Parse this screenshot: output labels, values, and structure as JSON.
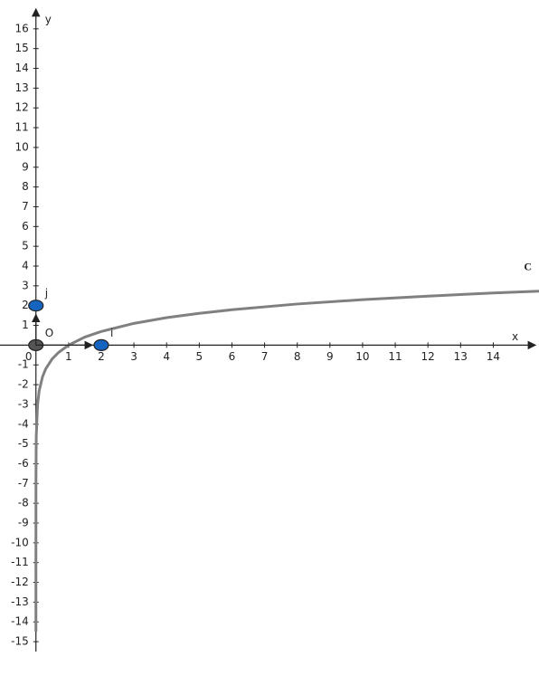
{
  "chart_data": {
    "type": "line",
    "x_label": "x",
    "y_label": "y",
    "xlim": [
      -1.1,
      15.4
    ],
    "ylim": [
      -15.5,
      17
    ],
    "xticks": [
      0,
      1,
      2,
      3,
      4,
      5,
      6,
      7,
      8,
      9,
      10,
      11,
      12,
      13,
      14
    ],
    "yticks": [
      -15,
      -14,
      -13,
      -12,
      -11,
      -10,
      -9,
      -8,
      -7,
      -6,
      -5,
      -4,
      -3,
      -2,
      -1,
      1,
      2,
      3,
      4,
      5,
      6,
      7,
      8,
      9,
      10,
      11,
      12,
      13,
      14,
      15,
      16
    ],
    "series": [
      {
        "name": "C",
        "color": "#808080",
        "x": [
          5e-07,
          1e-06,
          1e-05,
          0.0001,
          0.001,
          0.01,
          0.05,
          0.1,
          0.2,
          0.3,
          0.5,
          0.7,
          1,
          1.5,
          2,
          3,
          4,
          5,
          6,
          8,
          10,
          12,
          14,
          15.4
        ],
        "values": [
          -14.5,
          -13.82,
          -11.51,
          -9.21,
          -6.91,
          -4.61,
          -3.0,
          -2.3,
          -1.61,
          -1.2,
          -0.69,
          -0.36,
          0,
          0.41,
          0.69,
          1.1,
          1.39,
          1.61,
          1.79,
          2.08,
          2.3,
          2.48,
          2.64,
          2.73
        ]
      }
    ],
    "points": [
      {
        "label": "O",
        "x": 0,
        "y": 0,
        "color": "#555555"
      },
      {
        "label": "i",
        "x": 2,
        "y": 0,
        "color": "#1565c0"
      },
      {
        "label": "j",
        "x": 0,
        "y": 2,
        "color": "#1565c0"
      }
    ]
  }
}
